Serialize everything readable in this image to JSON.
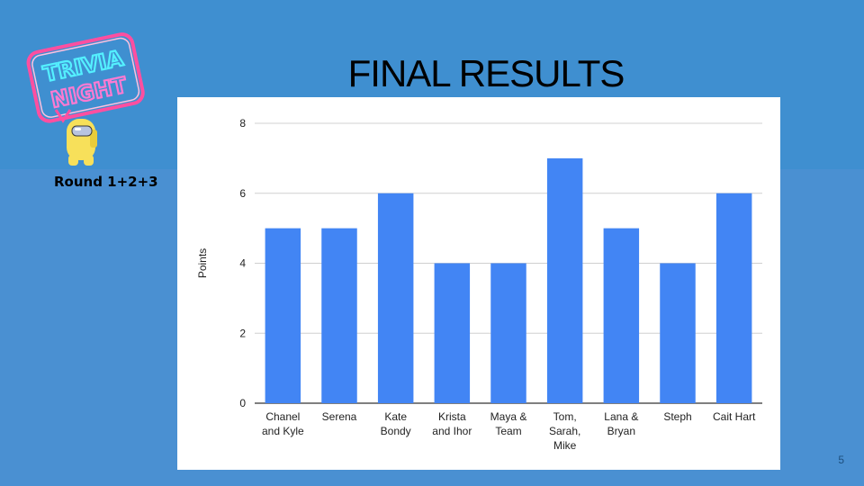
{
  "slide": {
    "title": "FINAL RESULTS",
    "round_label": "Round 1+2+3",
    "page_number": "5",
    "logo_text_line1": "TRIVIA",
    "logo_text_line2": "NIGHT",
    "background_color": "#3f8fd0"
  },
  "chart_data": {
    "type": "bar",
    "categories": [
      [
        "Chanel",
        "and Kyle"
      ],
      [
        "Serena"
      ],
      [
        "Kate",
        "Bondy"
      ],
      [
        "Krista",
        "and Ihor"
      ],
      [
        "Maya &",
        "Team"
      ],
      [
        "Tom,",
        "Sarah,",
        "Mike"
      ],
      [
        "Lana &",
        "Bryan"
      ],
      [
        "Steph"
      ],
      [
        "Cait Hart"
      ]
    ],
    "values": [
      5,
      5,
      6,
      4,
      4,
      7,
      5,
      4,
      6
    ],
    "ylabel": "Points",
    "xlabel": "",
    "ylim": [
      0,
      8
    ],
    "yticks": [
      0,
      2,
      4,
      6,
      8
    ],
    "grid": true,
    "bar_color": "#4285f4"
  }
}
